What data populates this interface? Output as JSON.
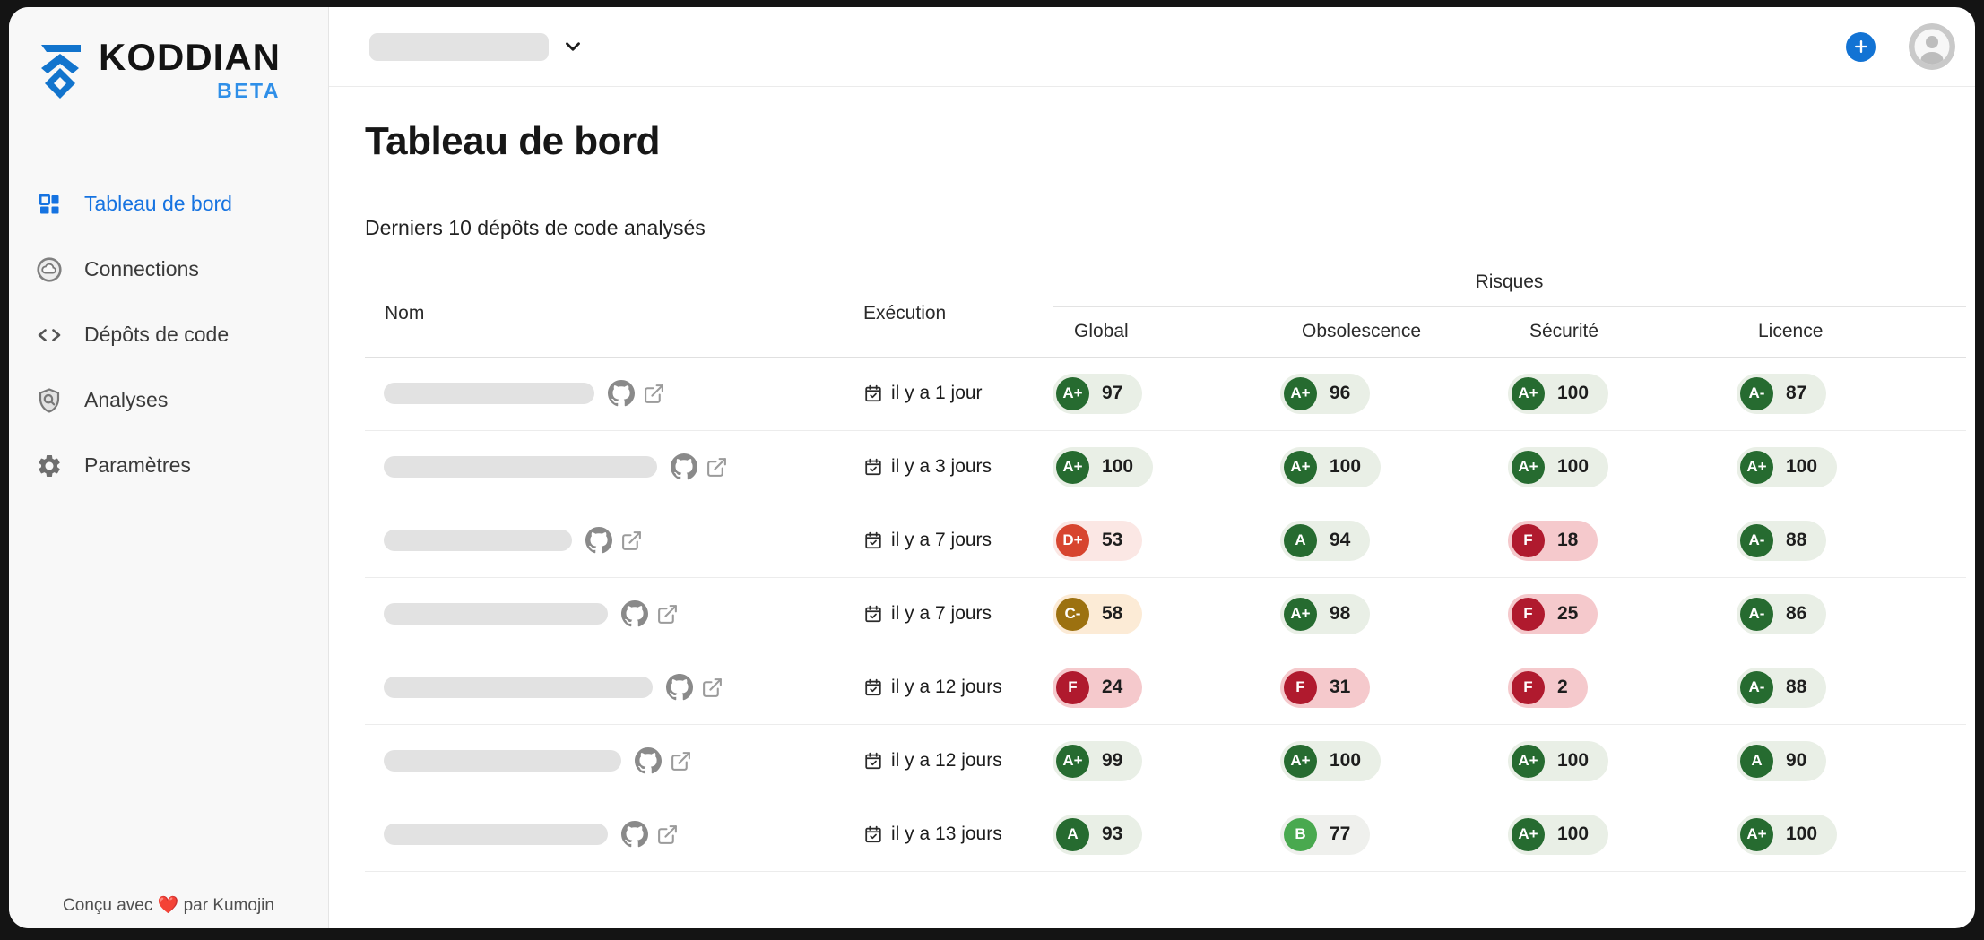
{
  "brand": {
    "name": "KODDIAN",
    "badge": "BETA"
  },
  "sidebar": {
    "items": [
      {
        "label": "Tableau de bord",
        "icon": "dashboard-icon",
        "active": true
      },
      {
        "label": "Connections",
        "icon": "cloud-icon",
        "active": false
      },
      {
        "label": "Dépôts de code",
        "icon": "code-icon",
        "active": false
      },
      {
        "label": "Analyses",
        "icon": "shield-search-icon",
        "active": false
      },
      {
        "label": "Paramètres",
        "icon": "gear-icon",
        "active": false
      }
    ],
    "footer": "Conçu avec ❤️ par Kumojin"
  },
  "topbar": {
    "org_selector": {
      "redacted": true
    },
    "icons": [
      "chevron-down-icon",
      "plus-icon",
      "avatar"
    ]
  },
  "page": {
    "title": "Tableau de bord",
    "subtitle": "Derniers 10 dépôts de code analysés"
  },
  "table": {
    "group_header": "Risques",
    "columns": {
      "name": "Nom",
      "execution": "Exécution",
      "risks": [
        "Global",
        "Obsolescence",
        "Sécurité",
        "Licence"
      ]
    },
    "rows": [
      {
        "name_redacted": true,
        "pill_width": 235,
        "execution": "il y a 1 jour",
        "scores": [
          {
            "grade": "A+",
            "score": "97"
          },
          {
            "grade": "A+",
            "score": "96"
          },
          {
            "grade": "A+",
            "score": "100"
          },
          {
            "grade": "A-",
            "score": "87"
          }
        ]
      },
      {
        "name_redacted": true,
        "pill_width": 305,
        "execution": "il y a 3 jours",
        "scores": [
          {
            "grade": "A+",
            "score": "100"
          },
          {
            "grade": "A+",
            "score": "100"
          },
          {
            "grade": "A+",
            "score": "100"
          },
          {
            "grade": "A+",
            "score": "100"
          }
        ]
      },
      {
        "name_redacted": true,
        "pill_width": 210,
        "execution": "il y a 7 jours",
        "scores": [
          {
            "grade": "D+",
            "score": "53"
          },
          {
            "grade": "A",
            "score": "94"
          },
          {
            "grade": "F",
            "score": "18"
          },
          {
            "grade": "A-",
            "score": "88"
          }
        ]
      },
      {
        "name_redacted": true,
        "pill_width": 250,
        "execution": "il y a 7 jours",
        "scores": [
          {
            "grade": "C-",
            "score": "58"
          },
          {
            "grade": "A+",
            "score": "98"
          },
          {
            "grade": "F",
            "score": "25"
          },
          {
            "grade": "A-",
            "score": "86"
          }
        ]
      },
      {
        "name_redacted": true,
        "pill_width": 300,
        "execution": "il y a 12 jours",
        "scores": [
          {
            "grade": "F",
            "score": "24"
          },
          {
            "grade": "F",
            "score": "31"
          },
          {
            "grade": "F",
            "score": "2"
          },
          {
            "grade": "A-",
            "score": "88"
          }
        ]
      },
      {
        "name_redacted": true,
        "pill_width": 265,
        "execution": "il y a 12 jours",
        "scores": [
          {
            "grade": "A+",
            "score": "99"
          },
          {
            "grade": "A+",
            "score": "100"
          },
          {
            "grade": "A+",
            "score": "100"
          },
          {
            "grade": "A",
            "score": "90"
          }
        ]
      },
      {
        "name_redacted": true,
        "pill_width": 250,
        "execution": "il y a 13 jours",
        "scores": [
          {
            "grade": "A",
            "score": "93"
          },
          {
            "grade": "B",
            "score": "77"
          },
          {
            "grade": "A+",
            "score": "100"
          },
          {
            "grade": "A+",
            "score": "100"
          }
        ]
      }
    ]
  },
  "colors": {
    "accent_blue": "#1673e1",
    "plus_button": "#1273d4",
    "logo_blue": "#1274cd",
    "grades": {
      "A+": {
        "circle": "#266b30",
        "pill": "#e9efe6"
      },
      "A": {
        "circle": "#266b30",
        "pill": "#e9efe6"
      },
      "A-": {
        "circle": "#266b30",
        "pill": "#e9efe6"
      },
      "B": {
        "circle": "#49a94f",
        "pill": "#eff0ed"
      },
      "C-": {
        "circle": "#9c7110",
        "pill": "#fcebd6"
      },
      "D+": {
        "circle": "#d7452f",
        "pill": "#fbe7e4"
      },
      "F": {
        "circle": "#b01a2e",
        "pill": "#f5c9cc"
      }
    }
  }
}
